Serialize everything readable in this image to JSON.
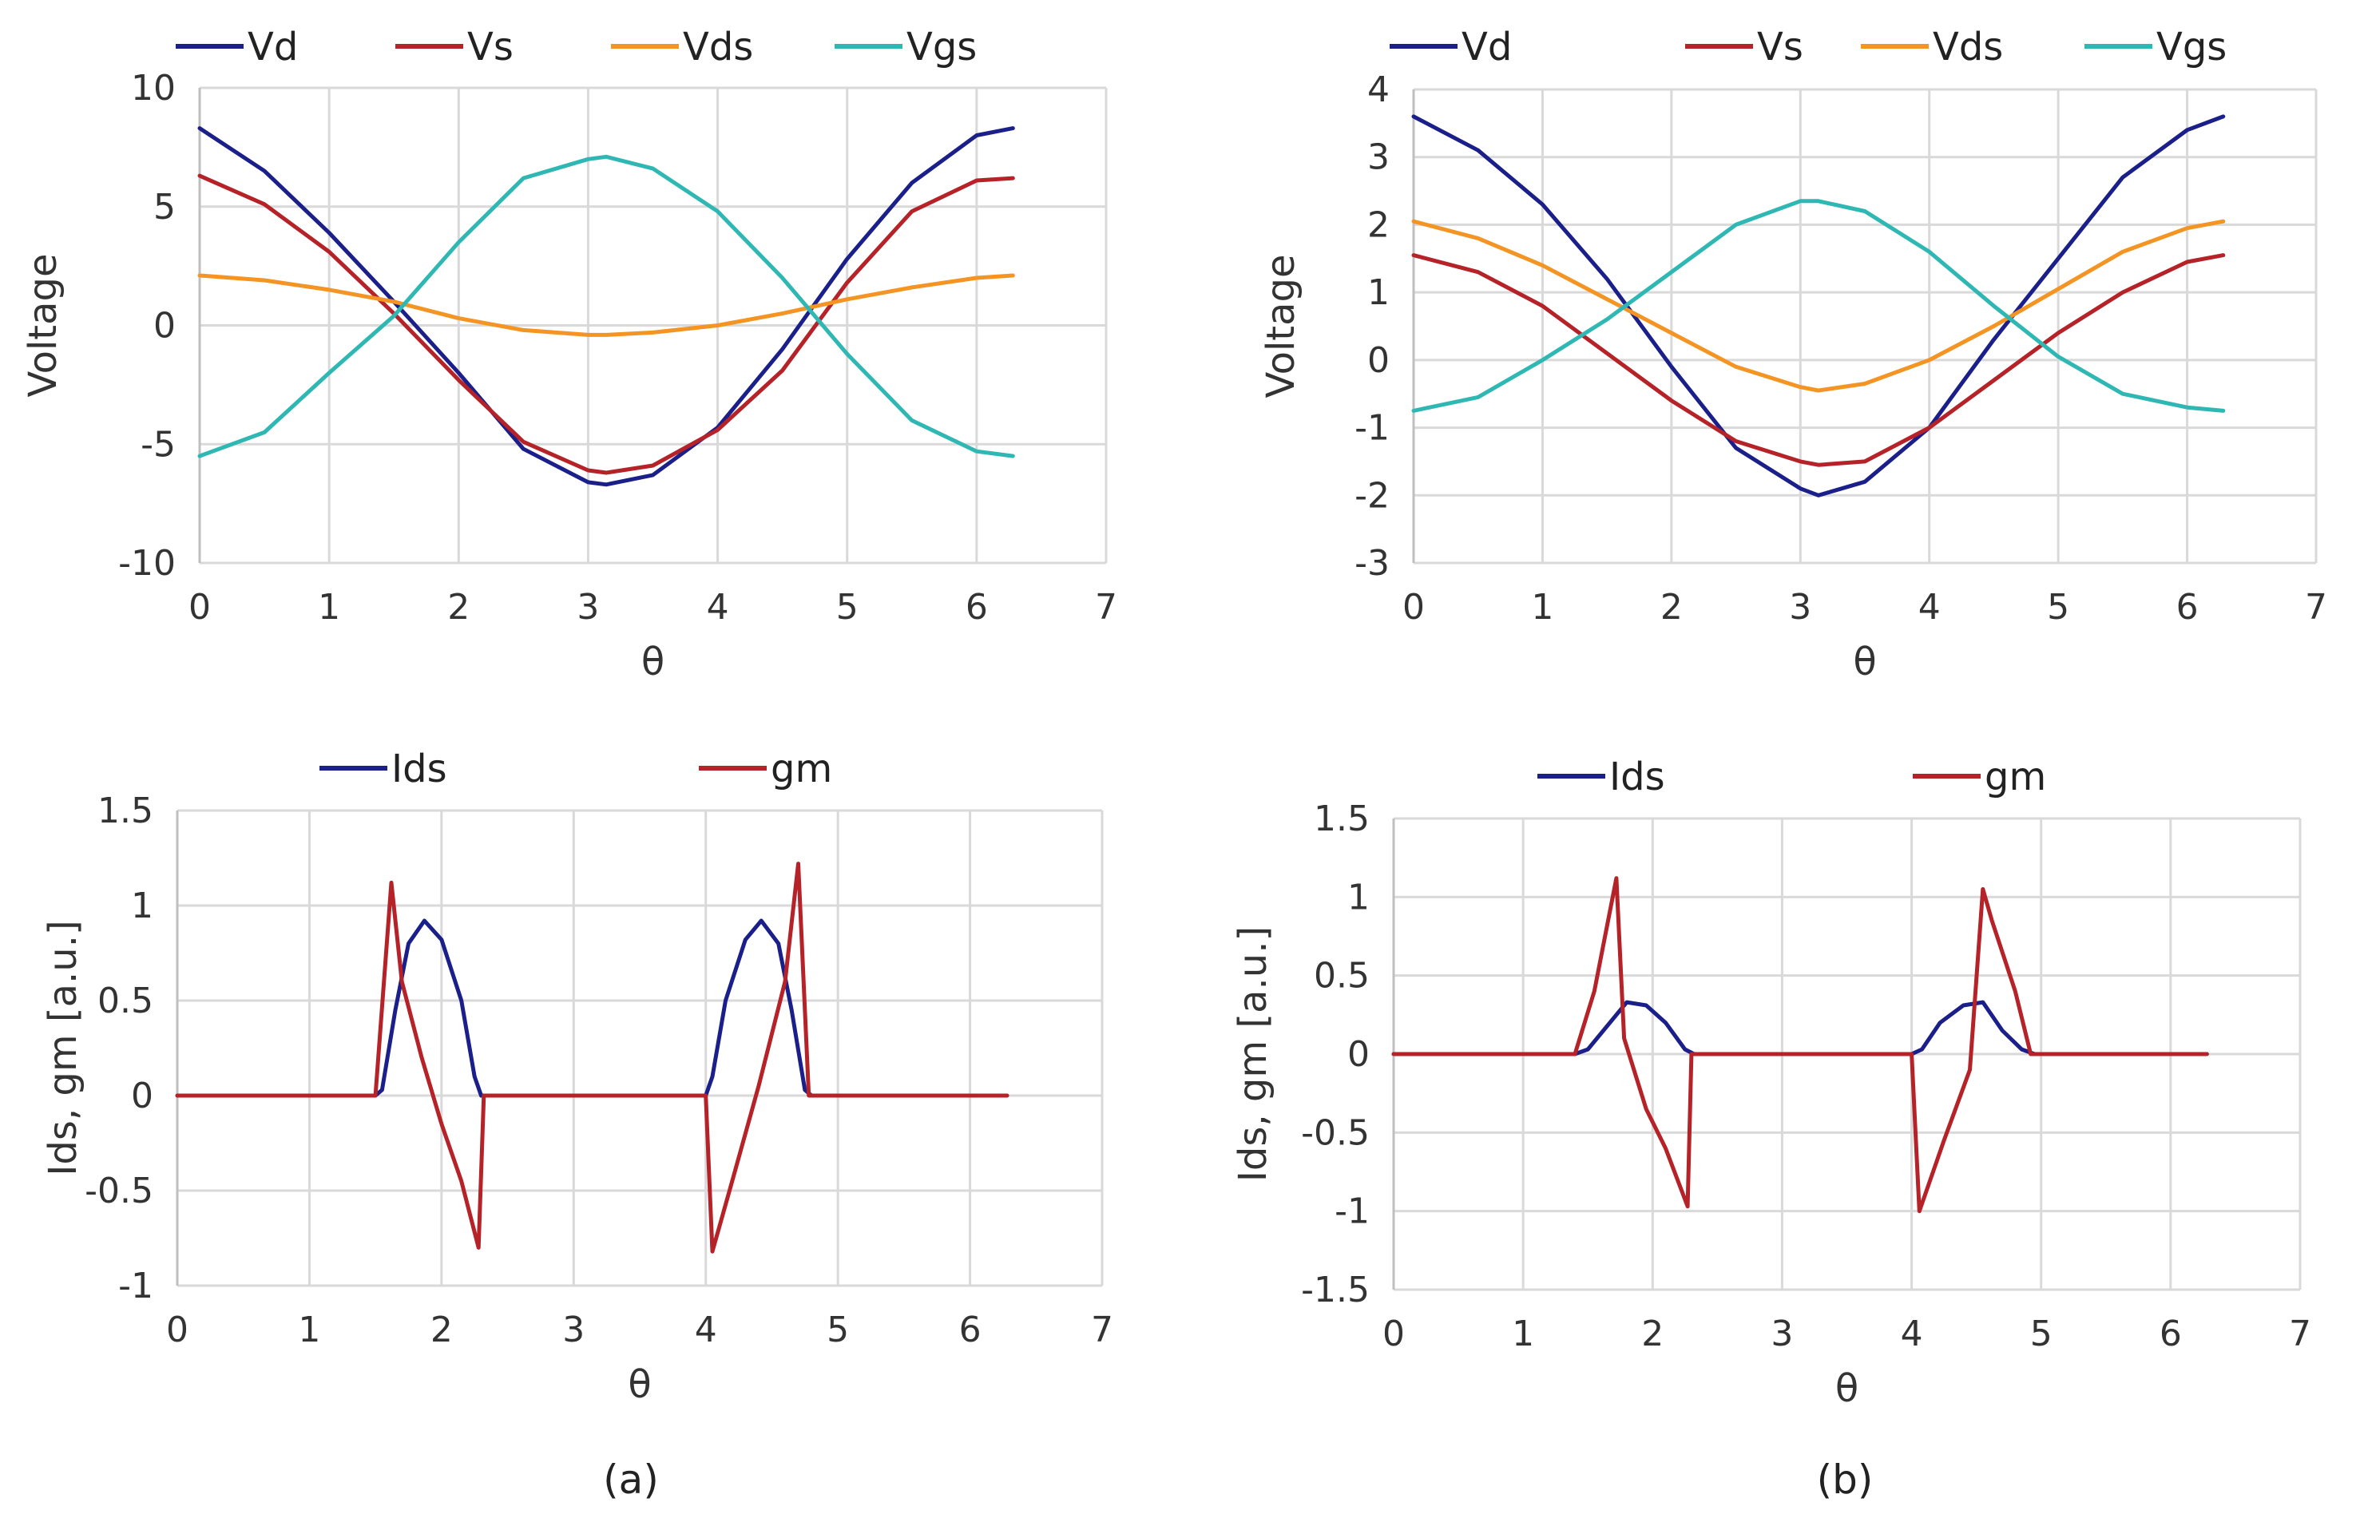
{
  "colors": {
    "Vd": "#1b1f8a",
    "Vs": "#b52228",
    "Vds": "#f39423",
    "Vgs": "#2fb8b3",
    "Ids": "#1b1f8a",
    "gm": "#b52228"
  },
  "captions": [
    "(a)",
    "(b)"
  ],
  "chart_data": [
    {
      "type": "line",
      "panel": "a-top",
      "xlabel": "θ",
      "ylabel": "Voltage",
      "xlim": [
        0,
        7
      ],
      "ylim": [
        -10,
        10
      ],
      "xticks": [
        "0",
        "1",
        "2",
        "3",
        "4",
        "5",
        "6",
        "7"
      ],
      "yticks": [
        "-10",
        "-5",
        "0",
        "5",
        "10"
      ],
      "ytick_values": [
        -10,
        -5,
        0,
        5,
        10
      ],
      "legend_position": "top",
      "x": [
        0,
        0.5,
        1,
        1.5,
        2,
        2.5,
        3,
        3.14,
        3.5,
        4,
        4.5,
        5,
        5.5,
        6,
        6.28
      ],
      "series": [
        {
          "name": "Vd",
          "values": [
            8.3,
            6.5,
            3.9,
            1.0,
            -2.0,
            -5.2,
            -6.6,
            -6.7,
            -6.3,
            -4.3,
            -1.0,
            2.8,
            6.0,
            8.0,
            8.3
          ]
        },
        {
          "name": "Vs",
          "values": [
            6.3,
            5.1,
            3.1,
            0.5,
            -2.3,
            -4.9,
            -6.1,
            -6.2,
            -5.9,
            -4.4,
            -1.9,
            1.8,
            4.8,
            6.1,
            6.2
          ]
        },
        {
          "name": "Vds",
          "values": [
            2.1,
            1.9,
            1.5,
            1.0,
            0.3,
            -0.2,
            -0.4,
            -0.4,
            -0.3,
            0.0,
            0.5,
            1.1,
            1.6,
            2.0,
            2.1
          ]
        },
        {
          "name": "Vgs",
          "values": [
            -5.5,
            -4.5,
            -2.0,
            0.4,
            3.5,
            6.2,
            7.0,
            7.1,
            6.6,
            4.8,
            2.0,
            -1.2,
            -4.0,
            -5.3,
            -5.5
          ]
        }
      ]
    },
    {
      "type": "line",
      "panel": "b-top",
      "xlabel": "θ",
      "ylabel": "Voltage",
      "xlim": [
        0,
        7
      ],
      "ylim": [
        -3,
        4
      ],
      "xticks": [
        "0",
        "1",
        "2",
        "3",
        "4",
        "5",
        "6",
        "7"
      ],
      "yticks": [
        "-3",
        "-2",
        "-1",
        "0",
        "1",
        "2",
        "3",
        "4"
      ],
      "ytick_values": [
        -3,
        -2,
        -1,
        0,
        1,
        2,
        3,
        4
      ],
      "legend_position": "top",
      "x": [
        0,
        0.5,
        1,
        1.5,
        2,
        2.5,
        3,
        3.14,
        3.5,
        4,
        4.5,
        5,
        5.5,
        6,
        6.28
      ],
      "series": [
        {
          "name": "Vd",
          "values": [
            3.6,
            3.1,
            2.3,
            1.2,
            -0.1,
            -1.3,
            -1.9,
            -2.0,
            -1.8,
            -1.0,
            0.3,
            1.5,
            2.7,
            3.4,
            3.6
          ]
        },
        {
          "name": "Vs",
          "values": [
            1.55,
            1.3,
            0.8,
            0.1,
            -0.6,
            -1.2,
            -1.5,
            -1.55,
            -1.5,
            -1.0,
            -0.3,
            0.4,
            1.0,
            1.45,
            1.55
          ]
        },
        {
          "name": "Vds",
          "values": [
            2.05,
            1.8,
            1.4,
            0.9,
            0.4,
            -0.1,
            -0.4,
            -0.45,
            -0.35,
            0.0,
            0.5,
            1.05,
            1.6,
            1.95,
            2.05
          ]
        },
        {
          "name": "Vgs",
          "values": [
            -0.75,
            -0.55,
            0.0,
            0.6,
            1.3,
            2.0,
            2.35,
            2.35,
            2.2,
            1.6,
            0.8,
            0.05,
            -0.5,
            -0.7,
            -0.75
          ]
        }
      ]
    },
    {
      "type": "line",
      "panel": "a-bottom",
      "xlabel": "θ",
      "ylabel": "Ids, gm [a.u.]",
      "xlim": [
        0,
        7
      ],
      "ylim": [
        -1,
        1.5
      ],
      "xticks": [
        "0",
        "1",
        "2",
        "3",
        "4",
        "5",
        "6",
        "7"
      ],
      "yticks": [
        "-1",
        "-0.5",
        "0",
        "0.5",
        "1",
        "1.5"
      ],
      "ytick_values": [
        -1,
        -0.5,
        0,
        0.5,
        1,
        1.5
      ],
      "legend_position": "top",
      "series": [
        {
          "name": "Ids",
          "x": [
            0,
            1.5,
            1.55,
            1.65,
            1.75,
            1.87,
            2.0,
            2.15,
            2.25,
            2.3,
            4.0,
            4.05,
            4.15,
            4.3,
            4.42,
            4.55,
            4.65,
            4.75,
            4.8,
            6.28
          ],
          "values": [
            0,
            0,
            0.03,
            0.45,
            0.8,
            0.92,
            0.82,
            0.5,
            0.1,
            0,
            0,
            0.1,
            0.5,
            0.82,
            0.92,
            0.8,
            0.45,
            0.03,
            0,
            0
          ]
        },
        {
          "name": "gm",
          "x": [
            0,
            1.5,
            1.62,
            1.7,
            1.85,
            2.0,
            2.15,
            2.28,
            2.32,
            4.0,
            4.05,
            4.2,
            4.4,
            4.6,
            4.7,
            4.78,
            6.28
          ],
          "values": [
            0,
            0,
            1.12,
            0.6,
            0.2,
            -0.15,
            -0.45,
            -0.8,
            0,
            0,
            -0.82,
            -0.45,
            0.05,
            0.6,
            1.22,
            0,
            0
          ]
        }
      ]
    },
    {
      "type": "line",
      "panel": "b-bottom",
      "xlabel": "θ",
      "ylabel": "Ids, gm [a.u.]",
      "xlim": [
        0,
        7
      ],
      "ylim": [
        -1.5,
        1.5
      ],
      "xticks": [
        "0",
        "1",
        "2",
        "3",
        "4",
        "5",
        "6",
        "7"
      ],
      "yticks": [
        "-1.5",
        "-1",
        "-0.5",
        "0",
        "0.5",
        "1",
        "1.5"
      ],
      "ytick_values": [
        -1.5,
        -1,
        -0.5,
        0,
        0.5,
        1,
        1.5
      ],
      "legend_position": "top",
      "series": [
        {
          "name": "Ids",
          "x": [
            0,
            1.4,
            1.5,
            1.62,
            1.8,
            1.95,
            2.1,
            2.25,
            2.32,
            4.0,
            4.08,
            4.22,
            4.4,
            4.55,
            4.7,
            4.85,
            4.95,
            6.28
          ],
          "values": [
            0,
            0,
            0.03,
            0.15,
            0.33,
            0.31,
            0.2,
            0.03,
            0,
            0,
            0.03,
            0.2,
            0.31,
            0.33,
            0.15,
            0.03,
            0,
            0
          ]
        },
        {
          "name": "gm",
          "x": [
            0,
            1.4,
            1.55,
            1.72,
            1.78,
            1.95,
            2.1,
            2.27,
            2.3,
            4.0,
            4.06,
            4.25,
            4.45,
            4.55,
            4.62,
            4.8,
            4.92,
            6.28
          ],
          "values": [
            0,
            0,
            0.4,
            1.12,
            0.1,
            -0.35,
            -0.6,
            -0.97,
            0,
            0,
            -1.0,
            -0.55,
            -0.1,
            1.05,
            0.85,
            0.4,
            0,
            0
          ]
        }
      ]
    }
  ]
}
